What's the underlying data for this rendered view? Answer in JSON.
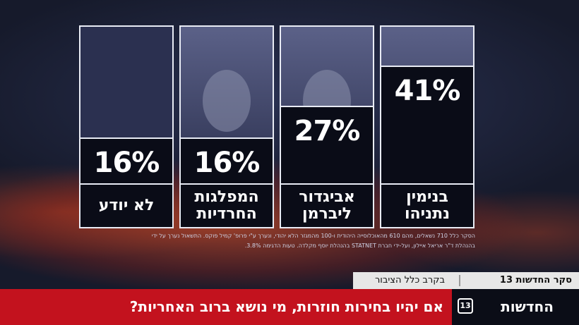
{
  "chart_data": {
    "type": "bar",
    "title": "אם יהיו בחירות חוזרות, מי נושא ברוב האחריות?",
    "categories": [
      "בנימין\nנתניהו",
      "אביגדור\nליברמן",
      "המפלגות\nהחרדיות",
      "לא יודע"
    ],
    "values": [
      41,
      27,
      16,
      16
    ],
    "value_labels": [
      "41%",
      "27%",
      "16%",
      "16%"
    ],
    "ylim": [
      0,
      100
    ],
    "grid": false
  },
  "subtitle": {
    "program": "סקר החדשות 13",
    "audience": "בקרב כלל הציבור"
  },
  "source": {
    "line1": "הסקר כלל 710 נשאלים, מהם 610 מהאוכלוסייה היהודית ו-100 מהמגזר הלא יהודי, ונערך ע\"י פרופ' קמיל פוקס. התשאול נערך על ידי",
    "line2": "בהנהלת ד\"ר אריאל איילון, ועל-ידי חברת STATNET בהנהלת יוסף מקלדה. טעות הדגימה 3.8%."
  },
  "brand": {
    "name": "החדשות",
    "badge": "13"
  },
  "colors": {
    "bar_fill": "#0a0c17",
    "red": "#c3121e",
    "border": "#e9ecf5"
  }
}
